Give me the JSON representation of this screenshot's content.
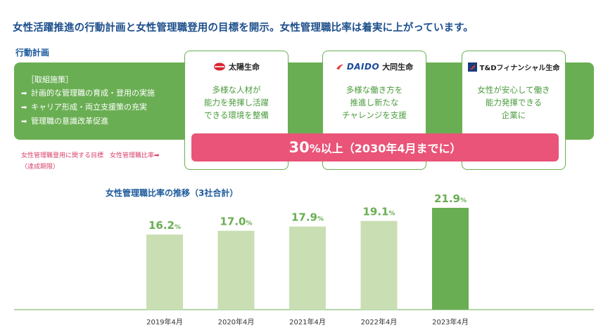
{
  "headline": "女性活躍推進の行動計画と女性管理職登用の目標を開示。女性管理職比率は着実に上がっています。",
  "action_plan": {
    "label": "行動計画",
    "policies_title": "［取組施策］",
    "policies": [
      "計画的な管理職の育成・登用の実施",
      "キャリア形成・両立支援策の充実",
      "管理職の意識改革促進"
    ]
  },
  "companies": [
    {
      "logo_text": "太陽生命",
      "logo_icon": "taiyo-sun-icon",
      "text": "多様な人材が\n能力を発揮し活躍\nできる環境を整備"
    },
    {
      "logo_prefix": "DAIDO",
      "logo_text": "大同生命",
      "logo_icon": "daido-wing-icon",
      "text": "多様な働き方を\n推進し新たな\nチャレンジを支援"
    },
    {
      "logo_text": "T&Dフィナンシャル生命",
      "logo_icon": "td-flag-icon",
      "text": "女性が安心して働き\n能力発揮できる\n企業に"
    }
  ],
  "target": {
    "label": "女性管理職登用に関する目標　女性管理職比率➡",
    "sublabel": "（達成期限）",
    "value": "30",
    "suffix": "%以上（2030年4月までに）"
  },
  "chart_data": {
    "type": "bar",
    "title": "女性管理職比率の推移（3社合計）",
    "categories": [
      "2019年4月",
      "2020年4月",
      "2021年4月",
      "2022年4月",
      "2023年4月"
    ],
    "values": [
      16.2,
      17.0,
      17.9,
      19.1,
      21.9
    ],
    "unit": "%",
    "colors": [
      "#c9dfb3",
      "#c9dfb3",
      "#c9dfb3",
      "#c9dfb3",
      "#6aae53"
    ],
    "label_colors": [
      "#6aae53",
      "#6aae53",
      "#6aae53",
      "#6aae53",
      "#6aae53"
    ]
  },
  "colors": {
    "brand_green": "#6aae53",
    "target_pink": "#e95478",
    "title_blue": "#1d4f8c"
  }
}
